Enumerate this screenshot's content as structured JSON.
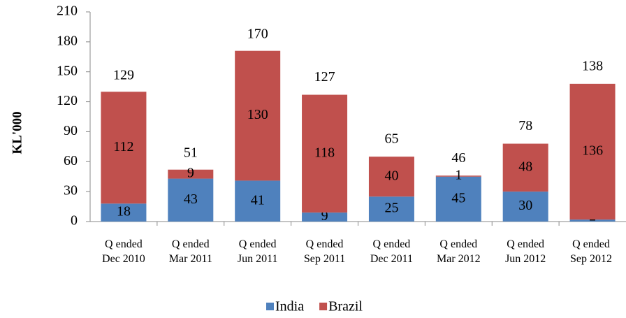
{
  "chart_data": {
    "type": "stacked_bar",
    "y_axis_label": "KL'000",
    "categories": [
      "Q ended\nDec 2010",
      "Q ended\nMar 2011",
      "Q ended\nJun 2011",
      "Q ended\nSep 2011",
      "Q ended\nDec 2011",
      "Q ended\nMar 2012",
      "Q ended\nJun 2012",
      "Q ended\nSep 2012"
    ],
    "series": [
      {
        "name": "India",
        "color": "#4f81bd",
        "values": [
          18,
          43,
          41,
          9,
          25,
          45,
          30,
          2
        ]
      },
      {
        "name": "Brazil",
        "color": "#c0504d",
        "values": [
          112,
          9,
          130,
          118,
          40,
          1,
          48,
          136
        ]
      }
    ],
    "totals": [
      129,
      51,
      170,
      127,
      65,
      46,
      78,
      138
    ],
    "ylim": [
      0,
      210
    ],
    "yticks": [
      0,
      30,
      60,
      90,
      120,
      150,
      180,
      210
    ],
    "grid": false,
    "legend": "bottom"
  }
}
